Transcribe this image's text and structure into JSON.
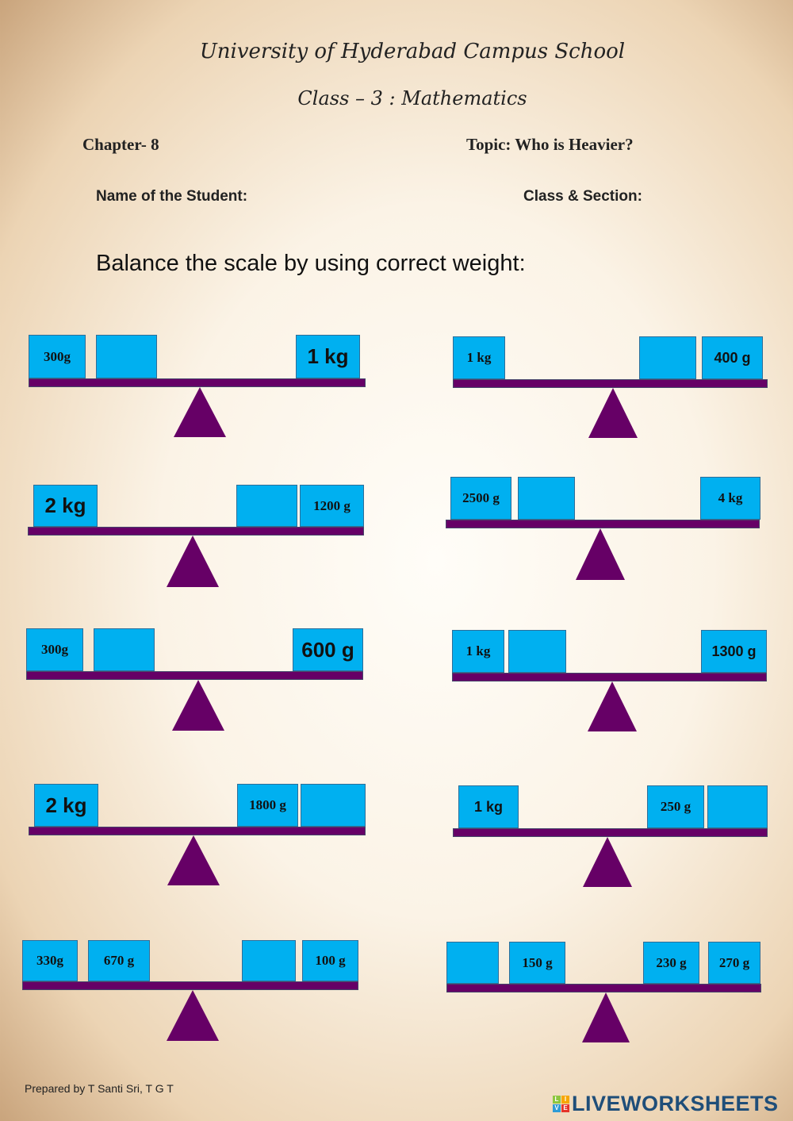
{
  "header": {
    "school": "University of Hyderabad Campus School",
    "class": "Class – 3 : Mathematics",
    "chapter": "Chapter- 8",
    "topic": "Topic: Who is Heavier?",
    "name_label": "Name of the Student:",
    "section_label": "Class & Section:"
  },
  "instruction": "Balance the scale by using correct weight:",
  "scales": [
    {
      "weights": [
        "300g",
        "",
        "1 kg"
      ]
    },
    {
      "weights": [
        "2 kg",
        "",
        "1200 g"
      ]
    },
    {
      "weights": [
        "300g",
        "",
        "600 g"
      ]
    },
    {
      "weights": [
        "2 kg",
        "1800 g",
        ""
      ]
    },
    {
      "weights": [
        "330g",
        "670 g",
        "",
        "100 g"
      ]
    },
    {
      "weights": [
        "1 kg",
        "",
        "400 g"
      ]
    },
    {
      "weights": [
        "2500 g",
        "",
        "4 kg"
      ]
    },
    {
      "weights": [
        "1 kg",
        "",
        "1300 g"
      ]
    },
    {
      "weights": [
        "1 kg",
        "250 g",
        ""
      ]
    },
    {
      "weights": [
        "",
        "150 g",
        "230 g",
        "270 g"
      ]
    }
  ],
  "colors": {
    "weight_box": "#00b0f0",
    "beam": "#660066",
    "fulcrum": "#660066"
  },
  "footer": {
    "prepared_by": "Prepared by T Santi Sri, T G T",
    "logo": "LIVEWORKSHEETS",
    "logo_letters": [
      "L",
      "I",
      "V",
      "E"
    ]
  }
}
